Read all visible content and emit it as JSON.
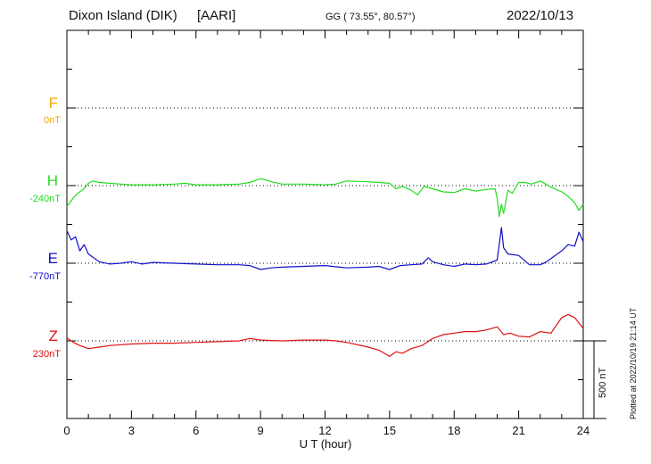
{
  "header": {
    "station": "Dixon Island (DIK)",
    "organization": "[AARI]",
    "coordinates": "GG ( 73.55°,  80.57°)",
    "date": "2022/10/13"
  },
  "plotted_note": "Plotted at 2022/10/19 21:14 UT",
  "scale_bar": {
    "label": "500 nT",
    "value_nT": 500
  },
  "colors": {
    "F": "#f0a800",
    "H": "#22dd22",
    "E": "#1010c8",
    "Z": "#dd1111",
    "axis": "#000000"
  },
  "chart_data": {
    "type": "line",
    "xlabel": "U T (hour)",
    "xlim": [
      0,
      24
    ],
    "xticks": [
      0,
      3,
      6,
      9,
      12,
      15,
      18,
      21,
      24
    ],
    "xtick_labels": [
      "0",
      "3",
      "6",
      "9",
      "12",
      "15",
      "18",
      "21",
      "24"
    ],
    "grid": "dotted baselines per channel",
    "units_per_panel_row": 500,
    "series": [
      {
        "name": "F",
        "baseline_label": "0nT",
        "baseline_nT": 0,
        "x": [],
        "y": []
      },
      {
        "name": "H",
        "baseline_label": "-240nT",
        "baseline_nT": -240,
        "x": [
          0,
          0.3,
          0.5,
          0.8,
          1.0,
          1.2,
          1.5,
          2.0,
          2.5,
          3.0,
          4.0,
          5.0,
          5.5,
          6.0,
          7.0,
          8.0,
          8.5,
          9.0,
          9.3,
          9.5,
          10.0,
          11.0,
          12.0,
          12.5,
          13.0,
          14.0,
          14.5,
          15.0,
          15.3,
          15.6,
          16.0,
          16.3,
          16.6,
          17.0,
          17.5,
          18.0,
          18.5,
          19.0,
          19.5,
          19.9,
          20.0,
          20.1,
          20.2,
          20.3,
          20.5,
          20.7,
          21.0,
          21.3,
          21.6,
          22.0,
          22.5,
          23.0,
          23.3,
          23.6,
          23.8,
          24.0
        ],
        "y": [
          -135,
          -80,
          -50,
          -20,
          15,
          30,
          20,
          15,
          10,
          5,
          5,
          10,
          15,
          5,
          5,
          10,
          20,
          45,
          35,
          25,
          10,
          10,
          5,
          10,
          30,
          25,
          20,
          15,
          -20,
          -5,
          -30,
          -60,
          -5,
          -20,
          -40,
          -45,
          -20,
          -35,
          -25,
          -20,
          -80,
          -200,
          -120,
          -180,
          -30,
          -50,
          20,
          20,
          10,
          30,
          -10,
          -40,
          -70,
          -110,
          -160,
          -120
        ],
        "annotations": []
      },
      {
        "name": "E",
        "baseline_label": "-770nT",
        "baseline_nT": -770,
        "x": [
          0,
          0.2,
          0.4,
          0.6,
          0.8,
          1.0,
          1.5,
          2.0,
          2.5,
          3.0,
          3.5,
          4.0,
          5.0,
          6.0,
          7.0,
          8.0,
          8.5,
          9.0,
          9.5,
          10.0,
          11.0,
          12.0,
          13.0,
          14.0,
          14.5,
          15.0,
          15.5,
          16.0,
          16.5,
          16.8,
          17.0,
          17.5,
          18.0,
          18.5,
          19.0,
          19.5,
          20.0,
          20.2,
          20.3,
          20.5,
          21.0,
          21.5,
          22.0,
          22.3,
          22.6,
          23.0,
          23.3,
          23.6,
          23.8,
          24.0
        ],
        "y": [
          210,
          150,
          170,
          80,
          120,
          60,
          10,
          -5,
          0,
          10,
          -5,
          5,
          0,
          -5,
          -10,
          -10,
          -15,
          -40,
          -30,
          -25,
          -20,
          -15,
          -30,
          -25,
          -20,
          -40,
          -15,
          -10,
          -5,
          35,
          10,
          -10,
          -20,
          -5,
          -10,
          -5,
          20,
          230,
          100,
          60,
          50,
          -10,
          -10,
          10,
          40,
          80,
          120,
          110,
          200,
          140
        ],
        "annotations": []
      },
      {
        "name": "Z",
        "baseline_label": "230nT",
        "baseline_nT": 230,
        "x": [
          0,
          0.3,
          0.6,
          1.0,
          1.5,
          2.0,
          3.0,
          4.0,
          5.0,
          6.0,
          7.0,
          8.0,
          8.5,
          9.0,
          10.0,
          11.0,
          12.0,
          12.5,
          13.0,
          14.0,
          14.5,
          15.0,
          15.3,
          15.6,
          16.0,
          16.5,
          17.0,
          17.5,
          18.0,
          18.5,
          19.0,
          19.5,
          20.0,
          20.3,
          20.6,
          21.0,
          21.5,
          22.0,
          22.5,
          23.0,
          23.3,
          23.6,
          24.0
        ],
        "y": [
          20,
          -10,
          -30,
          -50,
          -40,
          -30,
          -20,
          -15,
          -15,
          -10,
          -5,
          0,
          15,
          5,
          0,
          5,
          5,
          0,
          -10,
          -40,
          -60,
          -100,
          -70,
          -80,
          -50,
          -30,
          15,
          40,
          50,
          60,
          60,
          70,
          90,
          40,
          50,
          30,
          25,
          60,
          50,
          150,
          170,
          150,
          80
        ],
        "annotations": []
      }
    ]
  }
}
